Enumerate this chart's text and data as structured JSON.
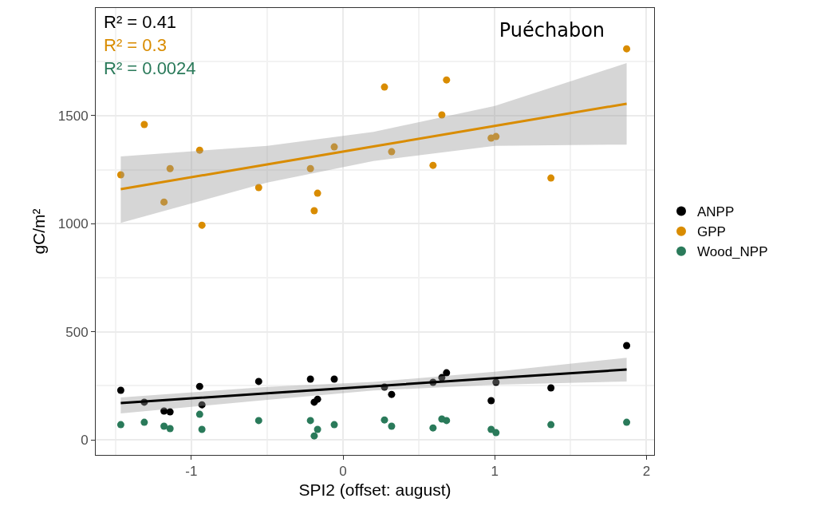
{
  "chart_data": {
    "type": "scatter",
    "title": "Puéchabon",
    "xlabel": "SPI2 (offset: august)",
    "ylabel": "gC/m²",
    "annotations": [
      "R² = 0.41",
      "R² = 0.3",
      "R² = 0.0024"
    ],
    "xlim": [
      -1.63,
      2.05
    ],
    "ylim": [
      -70,
      1998
    ],
    "xticks": [
      -1,
      0,
      1,
      2
    ],
    "yticks": [
      0,
      500,
      1000,
      1500
    ],
    "grid": true,
    "legend": "right",
    "marker": "circle",
    "x": [
      -1.465,
      -1.31,
      -1.18,
      -1.14,
      -0.945,
      -0.93,
      -0.556,
      -0.215,
      -0.19,
      -0.168,
      -0.058,
      0.273,
      0.32,
      0.593,
      0.651,
      0.682,
      0.976,
      1.008,
      1.37,
      1.869
    ],
    "series": [
      {
        "name": "ANPP",
        "color": "#000000",
        "values": [
          229,
          174,
          133,
          129,
          247,
          162,
          270,
          281,
          174,
          188,
          281,
          244,
          210,
          266,
          288,
          310,
          181,
          266,
          240,
          436
        ]
      },
      {
        "name": "GPP",
        "color": "#d98c00",
        "values": [
          1226,
          1459,
          1100,
          1255,
          1340,
          993,
          1167,
          1255,
          1060,
          1141,
          1355,
          1632,
          1333,
          1270,
          1503,
          1665,
          1396,
          1403,
          1211,
          1809
        ]
      },
      {
        "name": "Wood_NPP",
        "color": "#2a7a5a",
        "values": [
          70,
          81,
          63,
          52,
          118,
          48,
          89,
          89,
          18,
          48,
          70,
          92,
          63,
          55,
          96,
          89,
          48,
          33,
          70,
          81
        ]
      },
      {
        "type": "line",
        "marker": "none",
        "color": "#000000",
        "x": [
          -1.465,
          -0.5,
          0.2,
          1,
          1.869
        ],
        "values": [
          170,
          215,
          248,
          285,
          325
        ],
        "lower": [
          122,
          185,
          228,
          255,
          270
        ],
        "upper": [
          196,
          245,
          268,
          315,
          380
        ]
      },
      {
        "type": "line",
        "marker": "none",
        "color": "#d98c00",
        "x": [
          -1.465,
          -0.5,
          0.2,
          1,
          1.869
        ],
        "values": [
          1160,
          1274,
          1357,
          1452,
          1555
        ],
        "lower": [
          1004,
          1190,
          1290,
          1360,
          1366
        ],
        "upper": [
          1311,
          1360,
          1425,
          1545,
          1743
        ]
      }
    ]
  }
}
